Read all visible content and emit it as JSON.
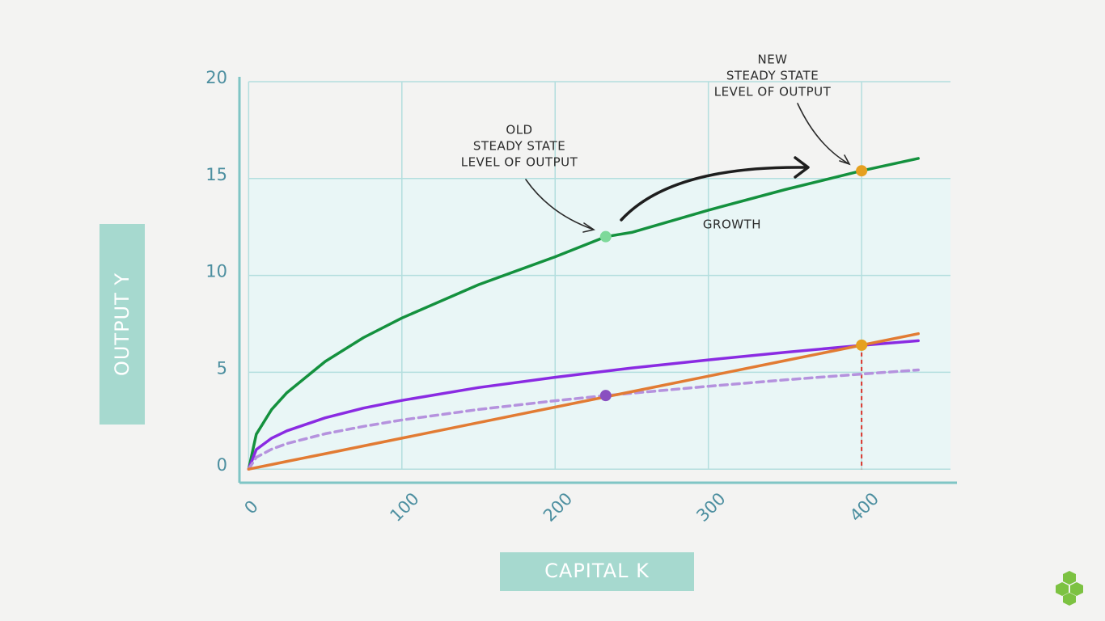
{
  "chart_data": {
    "type": "line",
    "x_label": "CAPITAL K",
    "y_label": "OUTPUT Y",
    "x": [
      0,
      5,
      15,
      25,
      50,
      75,
      100,
      150,
      200,
      233,
      250,
      300,
      350,
      400,
      437
    ],
    "series": [
      {
        "color": "#14913e",
        "dash": false,
        "values": [
          0,
          1.8,
          3.08,
          3.95,
          5.56,
          6.79,
          7.8,
          9.52,
          10.96,
          12.0,
          12.22,
          13.37,
          14.43,
          15.4,
          16.04
        ]
      },
      {
        "color": "#8a2be2",
        "dash": false,
        "values": [
          0,
          1.01,
          1.6,
          1.98,
          2.65,
          3.15,
          3.55,
          4.21,
          4.74,
          5.06,
          5.22,
          5.64,
          6.03,
          6.39,
          6.63
        ]
      },
      {
        "color": "#b592de",
        "dash": true,
        "values": [
          0,
          0.61,
          1.03,
          1.32,
          1.83,
          2.21,
          2.54,
          3.08,
          3.53,
          3.8,
          3.92,
          4.28,
          4.61,
          4.91,
          5.12
        ]
      },
      {
        "color": "#e27b33",
        "dash": false,
        "values": [
          0,
          0.08,
          0.24,
          0.4,
          0.8,
          1.2,
          1.6,
          2.4,
          3.2,
          3.73,
          4.0,
          4.8,
          5.6,
          6.4,
          6.99
        ]
      }
    ],
    "points": [
      {
        "x": 233,
        "y": 12.0,
        "color": "#7ed99a",
        "drop_line": false
      },
      {
        "x": 233,
        "y": 3.8,
        "color": "#8a4fc0",
        "drop_line": false
      },
      {
        "x": 400,
        "y": 15.4,
        "color": "#e5a020",
        "drop_line": false
      },
      {
        "x": 400,
        "y": 6.4,
        "color": "#e5a020",
        "drop_line": true
      }
    ],
    "annotations": [
      {
        "lines": [
          "OLD",
          "STEADY STATE",
          "LEVEL OF OUTPUT"
        ]
      },
      {
        "lines": [
          "NEW",
          "STEADY STATE",
          "LEVEL OF OUTPUT"
        ]
      },
      {
        "lines": [
          "GROWTH"
        ]
      }
    ],
    "xlim": [
      -6,
      458
    ],
    "ylim": [
      -0.7,
      20.25
    ],
    "xticks": [
      0,
      100,
      200,
      300,
      400
    ],
    "yticks": [
      0,
      5,
      10,
      15,
      20
    ],
    "grid": true
  }
}
